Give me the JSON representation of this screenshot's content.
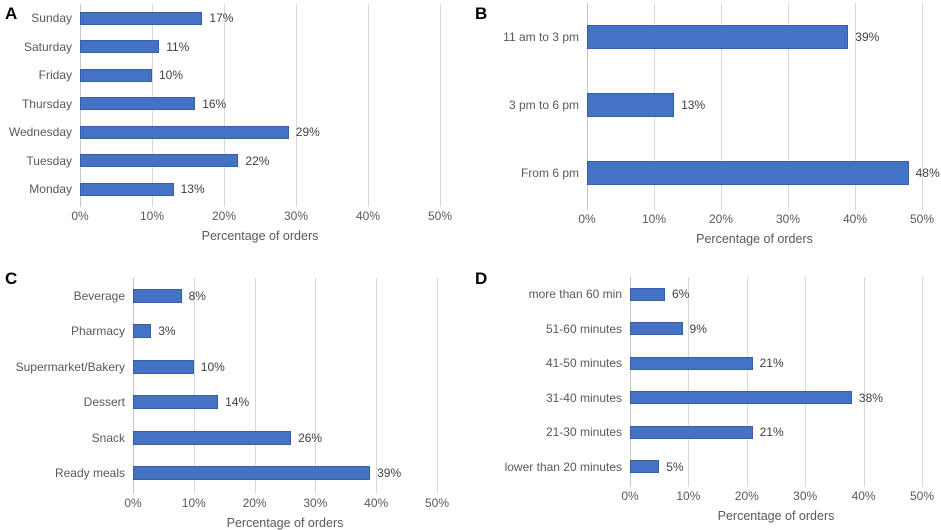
{
  "figure": {
    "background": "#ffffff",
    "panel_letters": [
      "A",
      "B",
      "C",
      "D"
    ]
  },
  "colors": {
    "bar_fill": "#4472C4",
    "bar_border": "#2F5597",
    "gridline": "#D9D9D9",
    "axis_line": "#C7C7C7",
    "tick_text": "#595959",
    "value_text": "#404040",
    "panel_letter": "#000000"
  },
  "chart_data": [
    {
      "panel": "A",
      "type": "bar",
      "orientation": "horizontal",
      "categories": [
        "Sunday",
        "Saturday",
        "Friday",
        "Thursday",
        "Wednesday",
        "Tuesday",
        "Monday"
      ],
      "values": [
        17,
        11,
        10,
        16,
        29,
        22,
        13
      ],
      "value_labels": [
        "17%",
        "11%",
        "10%",
        "16%",
        "29%",
        "22%",
        "13%"
      ],
      "xlabel": "Percentage of orders",
      "xlim": [
        0,
        50
      ],
      "xticks": [
        "0%",
        "10%",
        "20%",
        "30%",
        "40%",
        "50%"
      ],
      "grid": true,
      "legend": "none"
    },
    {
      "panel": "B",
      "type": "bar",
      "orientation": "horizontal",
      "categories": [
        "11 am to 3 pm",
        "3 pm to 6 pm",
        "From 6 pm"
      ],
      "values": [
        39,
        13,
        48
      ],
      "value_labels": [
        "39%",
        "13%",
        "48%"
      ],
      "xlabel": "Percentage of orders",
      "xlim": [
        0,
        50
      ],
      "xticks": [
        "0%",
        "10%",
        "20%",
        "30%",
        "40%",
        "50%"
      ],
      "grid": true,
      "legend": "none"
    },
    {
      "panel": "C",
      "type": "bar",
      "orientation": "horizontal",
      "categories": [
        "Beverage",
        "Pharmacy",
        "Supermarket/Bakery",
        "Dessert",
        "Snack",
        "Ready meals"
      ],
      "values": [
        8,
        3,
        10,
        14,
        26,
        39
      ],
      "value_labels": [
        "8%",
        "3%",
        "10%",
        "14%",
        "26%",
        "39%"
      ],
      "xlabel": "Percentage of orders",
      "xlim": [
        0,
        50
      ],
      "xticks": [
        "0%",
        "10%",
        "20%",
        "30%",
        "40%",
        "50%"
      ],
      "grid": true,
      "legend": "none"
    },
    {
      "panel": "D",
      "type": "bar",
      "orientation": "horizontal",
      "categories": [
        "more than 60 min",
        "51-60 minutes",
        "41-50 minutes",
        "31-40 minutes",
        "21-30 minutes",
        "lower than 20 minutes"
      ],
      "values": [
        6,
        9,
        21,
        38,
        21,
        5
      ],
      "value_labels": [
        "6%",
        "9%",
        "21%",
        "38%",
        "21%",
        "5%"
      ],
      "xlabel": "Percentage of orders",
      "xlim": [
        0,
        50
      ],
      "xticks": [
        "0%",
        "10%",
        "20%",
        "30%",
        "40%",
        "50%"
      ],
      "grid": true,
      "legend": "none"
    }
  ]
}
